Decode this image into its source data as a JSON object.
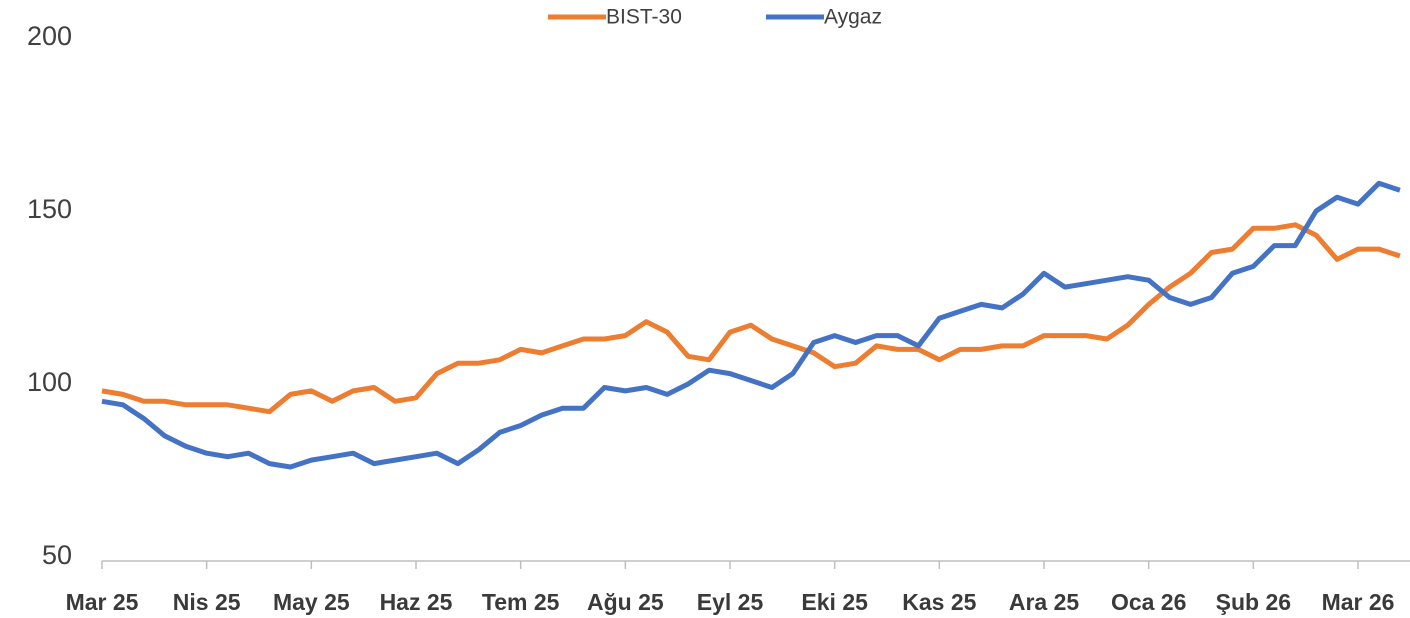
{
  "chart_data": {
    "type": "line",
    "categories": [
      "Mar 25",
      null,
      null,
      null,
      null,
      "Nis 25",
      null,
      null,
      null,
      null,
      "May 25",
      null,
      null,
      null,
      null,
      "Haz 25",
      null,
      null,
      null,
      null,
      "Tem 25",
      null,
      null,
      null,
      null,
      "Ağu 25",
      null,
      null,
      null,
      null,
      "Eyl 25",
      null,
      null,
      null,
      null,
      "Eki 25",
      null,
      null,
      null,
      null,
      "Kas 25",
      null,
      null,
      null,
      null,
      "Ara 25",
      null,
      null,
      null,
      null,
      "Oca 26",
      null,
      null,
      null,
      null,
      "Şub 26",
      null,
      null,
      null,
      null,
      "Mar 26",
      null,
      null
    ],
    "series": [
      {
        "name": "BIST-30",
        "color": "#ed7d31",
        "values": [
          98,
          97,
          95,
          95,
          94,
          94,
          94,
          93,
          92,
          97,
          98,
          95,
          98,
          99,
          95,
          96,
          103,
          106,
          106,
          107,
          110,
          109,
          111,
          113,
          113,
          114,
          118,
          115,
          108,
          107,
          115,
          117,
          113,
          111,
          109,
          105,
          106,
          111,
          110,
          110,
          107,
          110,
          110,
          111,
          111,
          114,
          114,
          114,
          113,
          117,
          123,
          128,
          132,
          138,
          139,
          145,
          145,
          146,
          143,
          136,
          139,
          139,
          137
        ]
      },
      {
        "name": "Aygaz",
        "color": "#4472c4",
        "values": [
          95,
          94,
          90,
          85,
          82,
          80,
          79,
          80,
          77,
          76,
          78,
          79,
          80,
          77,
          78,
          79,
          80,
          77,
          81,
          86,
          88,
          91,
          93,
          93,
          99,
          98,
          99,
          97,
          100,
          104,
          103,
          101,
          99,
          103,
          112,
          114,
          112,
          114,
          114,
          111,
          119,
          121,
          123,
          122,
          126,
          132,
          128,
          129,
          130,
          131,
          130,
          125,
          123,
          125,
          132,
          134,
          140,
          140,
          150,
          154,
          152,
          158,
          156
        ]
      }
    ],
    "ylim": [
      50,
      200
    ],
    "yticks": [
      50,
      100,
      150,
      200
    ],
    "grid": false,
    "legend": "top"
  }
}
